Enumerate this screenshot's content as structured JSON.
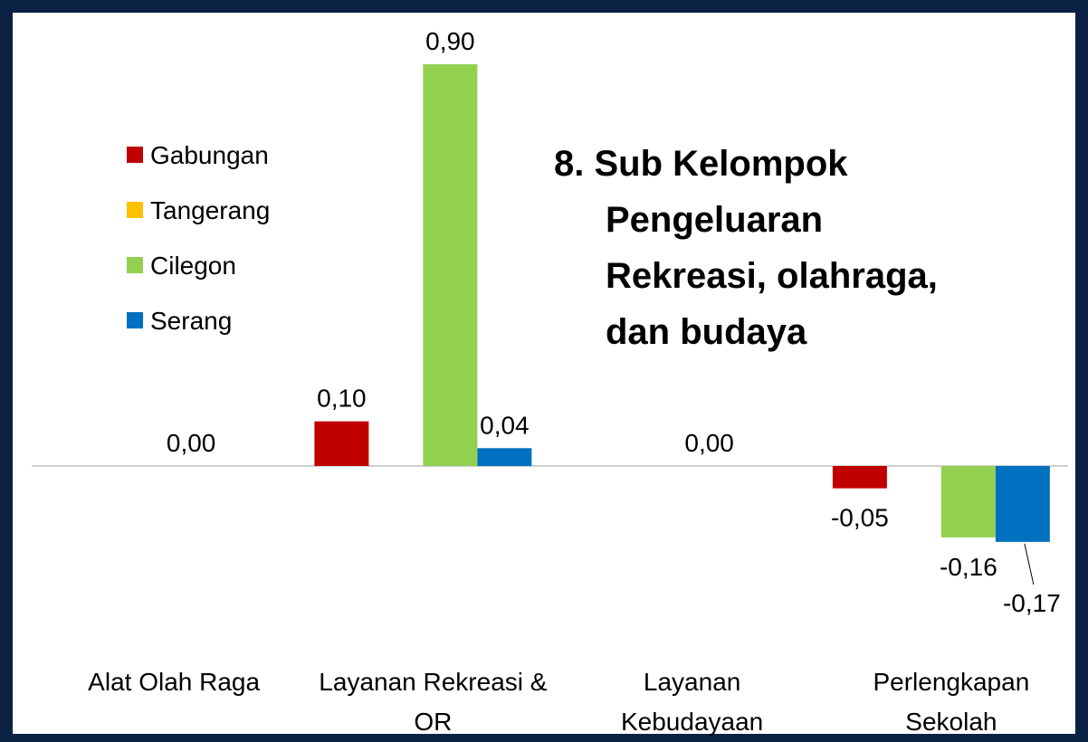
{
  "chart_data": {
    "type": "bar",
    "title": "8. Sub Kelompok Pengeluaran Rekreasi, olahraga, dan budaya",
    "categories": [
      "Alat Olah Raga",
      "Layanan Rekreasi & OR",
      "Layanan Kebudayaan",
      "Perlengkapan Sekolah"
    ],
    "series": [
      {
        "name": "Gabungan",
        "color": "#c00000",
        "values": [
          null,
          0.1,
          null,
          -0.05
        ],
        "value_labels": [
          null,
          "0,10",
          null,
          "-0,05"
        ]
      },
      {
        "name": "Tangerang",
        "color": "#ffc000",
        "values": [
          null,
          null,
          null,
          null
        ],
        "value_labels": [
          null,
          null,
          null,
          null
        ]
      },
      {
        "name": "Cilegon",
        "color": "#92d050",
        "values": [
          0.0,
          0.9,
          0.0,
          -0.16
        ],
        "value_labels": [
          "0,00",
          "0,90",
          "0,00",
          "-0,16"
        ]
      },
      {
        "name": "Serang",
        "color": "#0070c0",
        "values": [
          null,
          0.04,
          null,
          -0.17
        ],
        "value_labels": [
          null,
          "0,04",
          null,
          "-0,17"
        ]
      }
    ],
    "ylim": [
      -0.3,
      1.0
    ]
  }
}
